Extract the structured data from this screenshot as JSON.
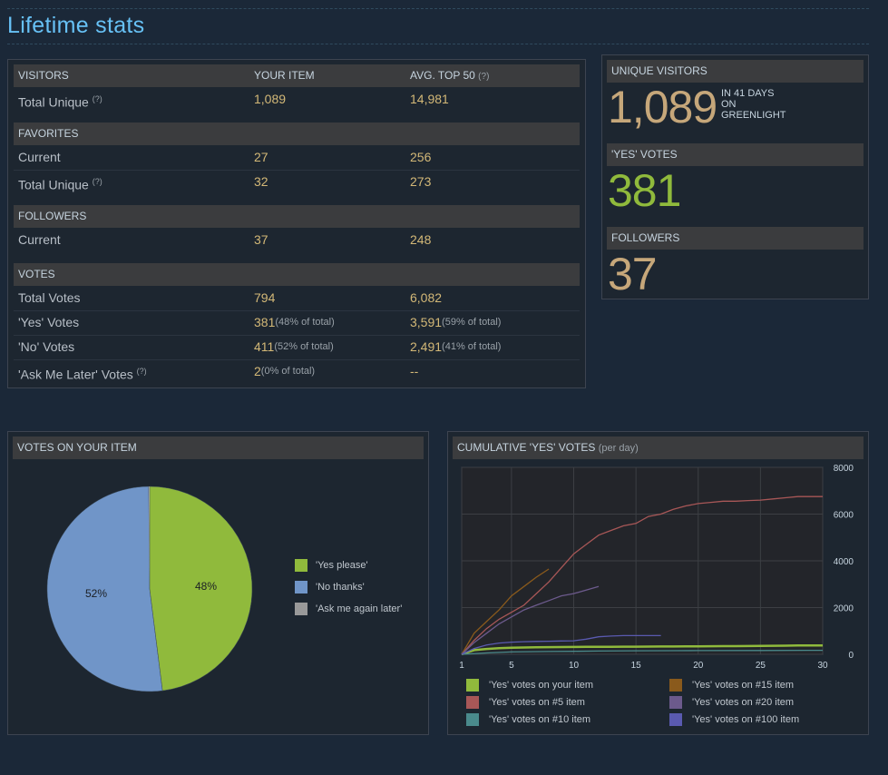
{
  "page_title": "Lifetime stats",
  "stats_table": {
    "headers": {
      "col1": "VISITORS",
      "col2": "YOUR ITEM",
      "col3": "AVG. TOP 50",
      "col3_help": "(?)"
    },
    "visitors": {
      "total_unique": {
        "label": "Total Unique",
        "help": "(?)",
        "yours": "1,089",
        "avg": "14,981"
      }
    },
    "favorites": {
      "title": "FAVORITES",
      "current": {
        "label": "Current",
        "yours": "27",
        "avg": "256"
      },
      "total_unique": {
        "label": "Total Unique",
        "help": "(?)",
        "yours": "32",
        "avg": "273"
      }
    },
    "followers": {
      "title": "FOLLOWERS",
      "current": {
        "label": "Current",
        "yours": "37",
        "avg": "248"
      }
    },
    "votes": {
      "title": "VOTES",
      "total": {
        "label": "Total Votes",
        "yours": "794",
        "avg": "6,082"
      },
      "yes": {
        "label": "'Yes' Votes",
        "yours": "381",
        "yours_note": "(48% of total)",
        "avg": "3,591",
        "avg_note": "(59% of total)"
      },
      "no": {
        "label": "'No' Votes",
        "yours": "411",
        "yours_note": "(52% of total)",
        "avg": "2,491",
        "avg_note": "(41% of total)"
      },
      "later": {
        "label": "'Ask Me Later' Votes",
        "help": "(?)",
        "yours": "2",
        "yours_note": "(0% of total)",
        "avg": "--"
      }
    }
  },
  "summary": {
    "unique_visitors": {
      "title": "UNIQUE VISITORS",
      "value": "1,089",
      "sub1": "IN 41 DAYS",
      "sub2": "ON",
      "sub3": "GREENLIGHT"
    },
    "yes_votes": {
      "title": "'YES' VOTES",
      "value": "381"
    },
    "followers": {
      "title": "FOLLOWERS",
      "value": "37"
    }
  },
  "colors": {
    "yes": "#90ba3c",
    "no": "#7095c8",
    "later": "#999999",
    "s5": "#a85757",
    "s10": "#4a8a8c",
    "s15": "#8a5a1c",
    "s20": "#6c5a8c",
    "s100": "#5a5ab0",
    "accent": "#67c1f5",
    "gold": "#c6a77a"
  },
  "pie": {
    "title": "VOTES ON YOUR ITEM",
    "legend": [
      "'Yes please'",
      "'No thanks'",
      "'Ask me again later'"
    ],
    "yes_label": "48%",
    "no_label": "52%"
  },
  "chart_data": {
    "type": "line",
    "title": "CUMULATIVE 'YES' VOTES",
    "subtitle": "(per day)",
    "xlim": [
      1,
      30
    ],
    "ylim": [
      0,
      8000
    ],
    "x_ticks": [
      "1",
      "5",
      "10",
      "15",
      "20",
      "25",
      "30"
    ],
    "y_ticks": [
      "0",
      "2000",
      "4000",
      "6000",
      "8000"
    ],
    "grid": true,
    "legend_position": "bottom",
    "series": [
      {
        "name": "'Yes' votes on your item",
        "color_key": "yes",
        "x": [
          1,
          2,
          3,
          4,
          5,
          6,
          7,
          8,
          9,
          10,
          11,
          12,
          13,
          14,
          15,
          16,
          17,
          18,
          19,
          20,
          21,
          22,
          23,
          24,
          25,
          26,
          27,
          28,
          29,
          30
        ],
        "y": [
          0,
          180,
          230,
          260,
          280,
          290,
          300,
          305,
          310,
          315,
          318,
          320,
          322,
          325,
          328,
          330,
          333,
          335,
          338,
          340,
          345,
          348,
          350,
          355,
          360,
          365,
          370,
          375,
          378,
          381
        ]
      },
      {
        "name": "'Yes' votes on #5 item",
        "color_key": "s5",
        "x": [
          1,
          2,
          3,
          4,
          5,
          6,
          7,
          8,
          9,
          10,
          11,
          12,
          13,
          14,
          15,
          16,
          17,
          18,
          19,
          20,
          21,
          22,
          23,
          24,
          25,
          26,
          27,
          28,
          29,
          30
        ],
        "y": [
          0,
          600,
          1100,
          1500,
          1800,
          2100,
          2600,
          3100,
          3700,
          4300,
          4700,
          5100,
          5300,
          5500,
          5600,
          5900,
          6000,
          6200,
          6350,
          6450,
          6500,
          6550,
          6550,
          6580,
          6600,
          6650,
          6700,
          6750,
          6750,
          6750
        ]
      },
      {
        "name": "'Yes' votes on #10 item",
        "color_key": "s10",
        "x": [
          1,
          3,
          5,
          8,
          10,
          12,
          15,
          18,
          20,
          25,
          30
        ],
        "y": [
          0,
          60,
          100,
          120,
          130,
          140,
          150,
          155,
          160,
          165,
          170
        ]
      },
      {
        "name": "'Yes' votes on #15 item",
        "color_key": "s15",
        "x": [
          1,
          2,
          3,
          4,
          5,
          6,
          7,
          8
        ],
        "y": [
          0,
          900,
          1400,
          1900,
          2500,
          2900,
          3300,
          3650
        ]
      },
      {
        "name": "'Yes' votes on #20 item",
        "color_key": "s20",
        "x": [
          1,
          2,
          3,
          4,
          5,
          6,
          7,
          8,
          9,
          10,
          11,
          12
        ],
        "y": [
          0,
          500,
          900,
          1300,
          1600,
          1900,
          2100,
          2300,
          2500,
          2600,
          2750,
          2900
        ]
      },
      {
        "name": "'Yes' votes on #100 item",
        "color_key": "s100",
        "x": [
          1,
          2,
          3,
          4,
          5,
          6,
          7,
          8,
          9,
          10,
          11,
          12,
          13,
          14,
          15,
          16,
          17
        ],
        "y": [
          0,
          250,
          400,
          480,
          520,
          540,
          550,
          560,
          570,
          580,
          650,
          750,
          780,
          800,
          800,
          800,
          800
        ]
      }
    ]
  }
}
